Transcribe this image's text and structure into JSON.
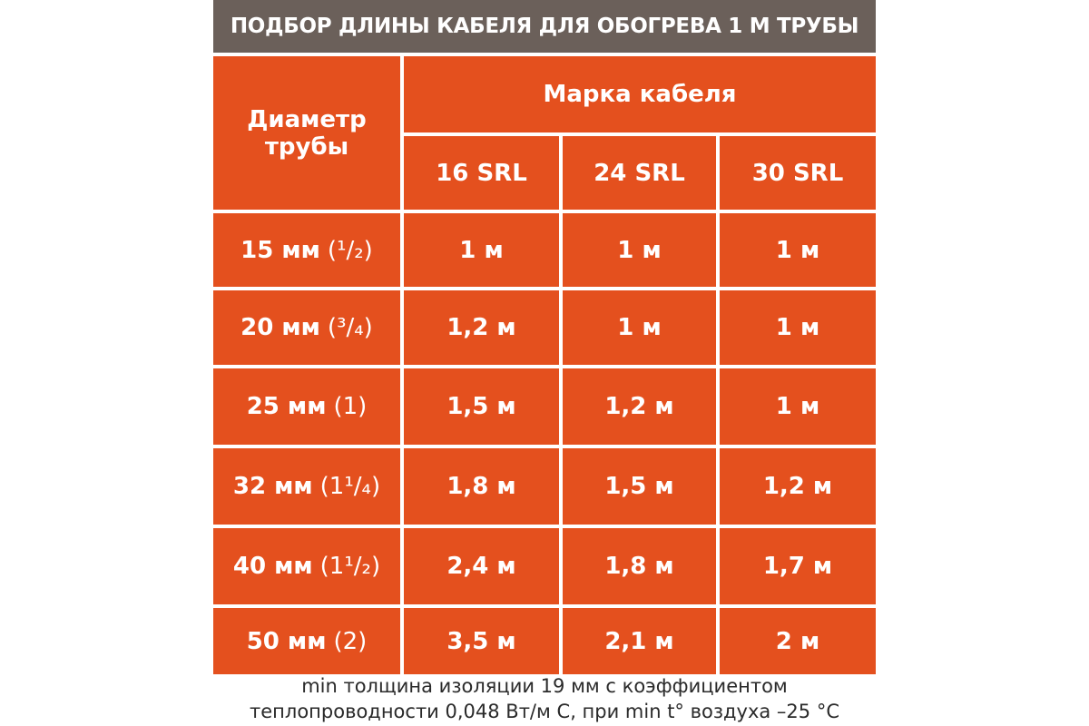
{
  "header": {
    "title": "ПОДБОР ДЛИНЫ КАБЕЛЯ ДЛЯ ОБОГРЕВА 1 М ТРУБЫ"
  },
  "table": {
    "row_label": "Диаметр трубы",
    "group_label": "Марка кабеля",
    "columns": [
      "16 SRL",
      "24 SRL",
      "30 SRL"
    ],
    "rows": [
      {
        "diameter": "15 мм",
        "inch": "(¹/₂)",
        "values": [
          "1 м",
          "1 м",
          "1 м"
        ]
      },
      {
        "diameter": "20 мм",
        "inch": "(³/₄)",
        "values": [
          "1,2 м",
          "1 м",
          "1 м"
        ]
      },
      {
        "diameter": "25 мм",
        "inch": "(1)",
        "values": [
          "1,5 м",
          "1,2 м",
          "1 м"
        ]
      },
      {
        "diameter": "32 мм",
        "inch": "(1¹/₄)",
        "values": [
          "1,8 м",
          "1,5 м",
          "1,2 м"
        ]
      },
      {
        "diameter": "40 мм",
        "inch": "(1¹/₂)",
        "values": [
          "2,4 м",
          "1,8 м",
          "1,7 м"
        ]
      },
      {
        "diameter": "50 мм",
        "inch": "(2)",
        "values": [
          "3,5 м",
          "2,1 м",
          "2 м"
        ]
      }
    ]
  },
  "footer": {
    "lines": [
      "min толщина изоляции 19 мм с коэффициентом",
      "теплопроводности 0,048 Вт/м С, при min t° воздуха –25 °C"
    ]
  }
}
